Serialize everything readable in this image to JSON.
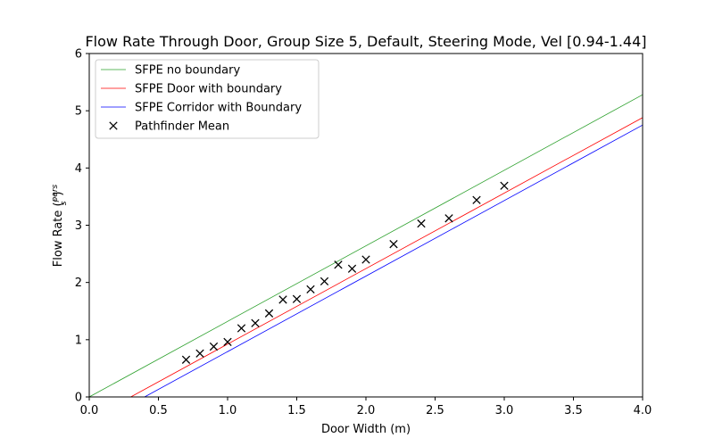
{
  "chart_data": {
    "type": "line",
    "title": "Flow Rate Through Door, Group Size 5, Default, Steering Mode, Vel [0.94-1.44]",
    "xlabel": "Door Width (m)",
    "ylabel_prefix": "Flow Rate (",
    "ylabel_frac_num": "pers",
    "ylabel_frac_den": "s",
    "ylabel_suffix": ")",
    "xlim": [
      0.0,
      4.0
    ],
    "ylim": [
      0,
      6
    ],
    "xticks": [
      0.0,
      0.5,
      1.0,
      1.5,
      2.0,
      2.5,
      3.0,
      3.5,
      4.0
    ],
    "xtick_labels": [
      "0.0",
      "0.5",
      "1.0",
      "1.5",
      "2.0",
      "2.5",
      "3.0",
      "3.5",
      "4.0"
    ],
    "yticks": [
      0,
      1,
      2,
      3,
      4,
      5,
      6
    ],
    "ytick_labels": [
      "0",
      "1",
      "2",
      "3",
      "4",
      "5",
      "6"
    ],
    "grid": false,
    "legend_position": "top-left",
    "series": [
      {
        "name": "SFPE no boundary",
        "kind": "line",
        "color": "#2ca02c",
        "x": [
          0.0,
          4.0
        ],
        "y": [
          0.0,
          5.28
        ]
      },
      {
        "name": "SFPE Door with boundary",
        "kind": "line",
        "color": "#ff0000",
        "x": [
          0.3,
          4.0
        ],
        "y": [
          0.0,
          4.88
        ]
      },
      {
        "name": "SFPE Corridor with Boundary",
        "kind": "line",
        "color": "#0000ff",
        "x": [
          0.4,
          4.0
        ],
        "y": [
          0.0,
          4.75
        ]
      },
      {
        "name": "Pathfinder Mean",
        "kind": "scatter",
        "marker": "x",
        "color": "#000000",
        "x": [
          0.7,
          0.8,
          0.9,
          1.0,
          1.1,
          1.2,
          1.3,
          1.4,
          1.5,
          1.6,
          1.7,
          1.8,
          1.9,
          2.0,
          2.2,
          2.4,
          2.6,
          2.8,
          3.0
        ],
        "y": [
          0.65,
          0.76,
          0.88,
          0.96,
          1.2,
          1.29,
          1.46,
          1.7,
          1.71,
          1.88,
          2.02,
          2.31,
          2.24,
          2.4,
          2.67,
          3.03,
          3.12,
          3.44,
          3.69
        ]
      }
    ]
  }
}
